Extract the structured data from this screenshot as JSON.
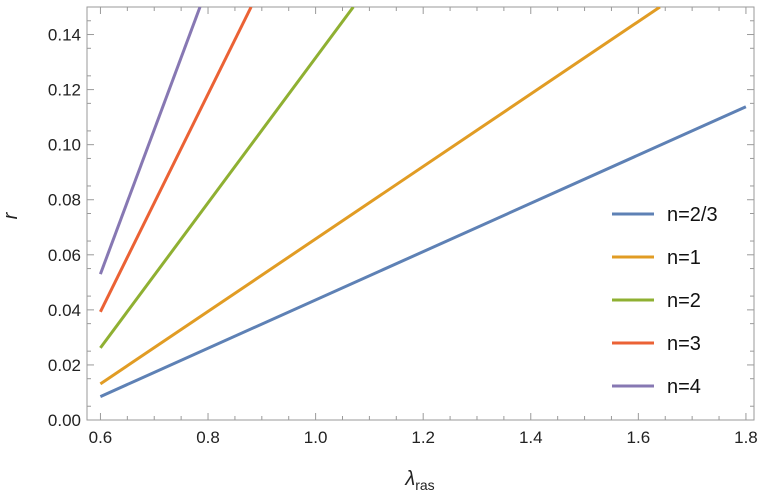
{
  "chart_data": {
    "type": "line",
    "title": "",
    "xlabel": "λ",
    "xlabel_sub": "ras",
    "ylabel": "r",
    "xlim": [
      0.575,
      1.815
    ],
    "ylim": [
      0.0,
      0.15
    ],
    "x_ticks": [
      0.6,
      0.8,
      1.0,
      1.2,
      1.4,
      1.6,
      1.8
    ],
    "x_tick_labels": [
      "0.6",
      "0.8",
      "1.0",
      "1.2",
      "1.4",
      "1.6",
      "1.8"
    ],
    "y_ticks": [
      0.0,
      0.02,
      0.04,
      0.06,
      0.08,
      0.1,
      0.12,
      0.14
    ],
    "y_tick_labels": [
      "0.00",
      "0.02",
      "0.04",
      "0.06",
      "0.08",
      "0.10",
      "0.12",
      "0.14"
    ],
    "grid": false,
    "legend_position": "right",
    "series": [
      {
        "name": "n=2/3",
        "color": "#5E81B5",
        "points": [
          [
            0.6,
            0.0085
          ],
          [
            1.8,
            0.1138
          ]
        ]
      },
      {
        "name": "n=1",
        "color": "#E19C24",
        "points": [
          [
            0.6,
            0.0131
          ],
          [
            1.64,
            0.15
          ]
        ]
      },
      {
        "name": "n=2",
        "color": "#8FB032",
        "points": [
          [
            0.6,
            0.0262
          ],
          [
            1.07,
            0.15
          ]
        ]
      },
      {
        "name": "n=3",
        "color": "#EB6235",
        "points": [
          [
            0.6,
            0.0393
          ],
          [
            0.88,
            0.15
          ]
        ]
      },
      {
        "name": "n=4",
        "color": "#8778B3",
        "points": [
          [
            0.6,
            0.053
          ],
          [
            0.785,
            0.15
          ]
        ]
      }
    ]
  }
}
